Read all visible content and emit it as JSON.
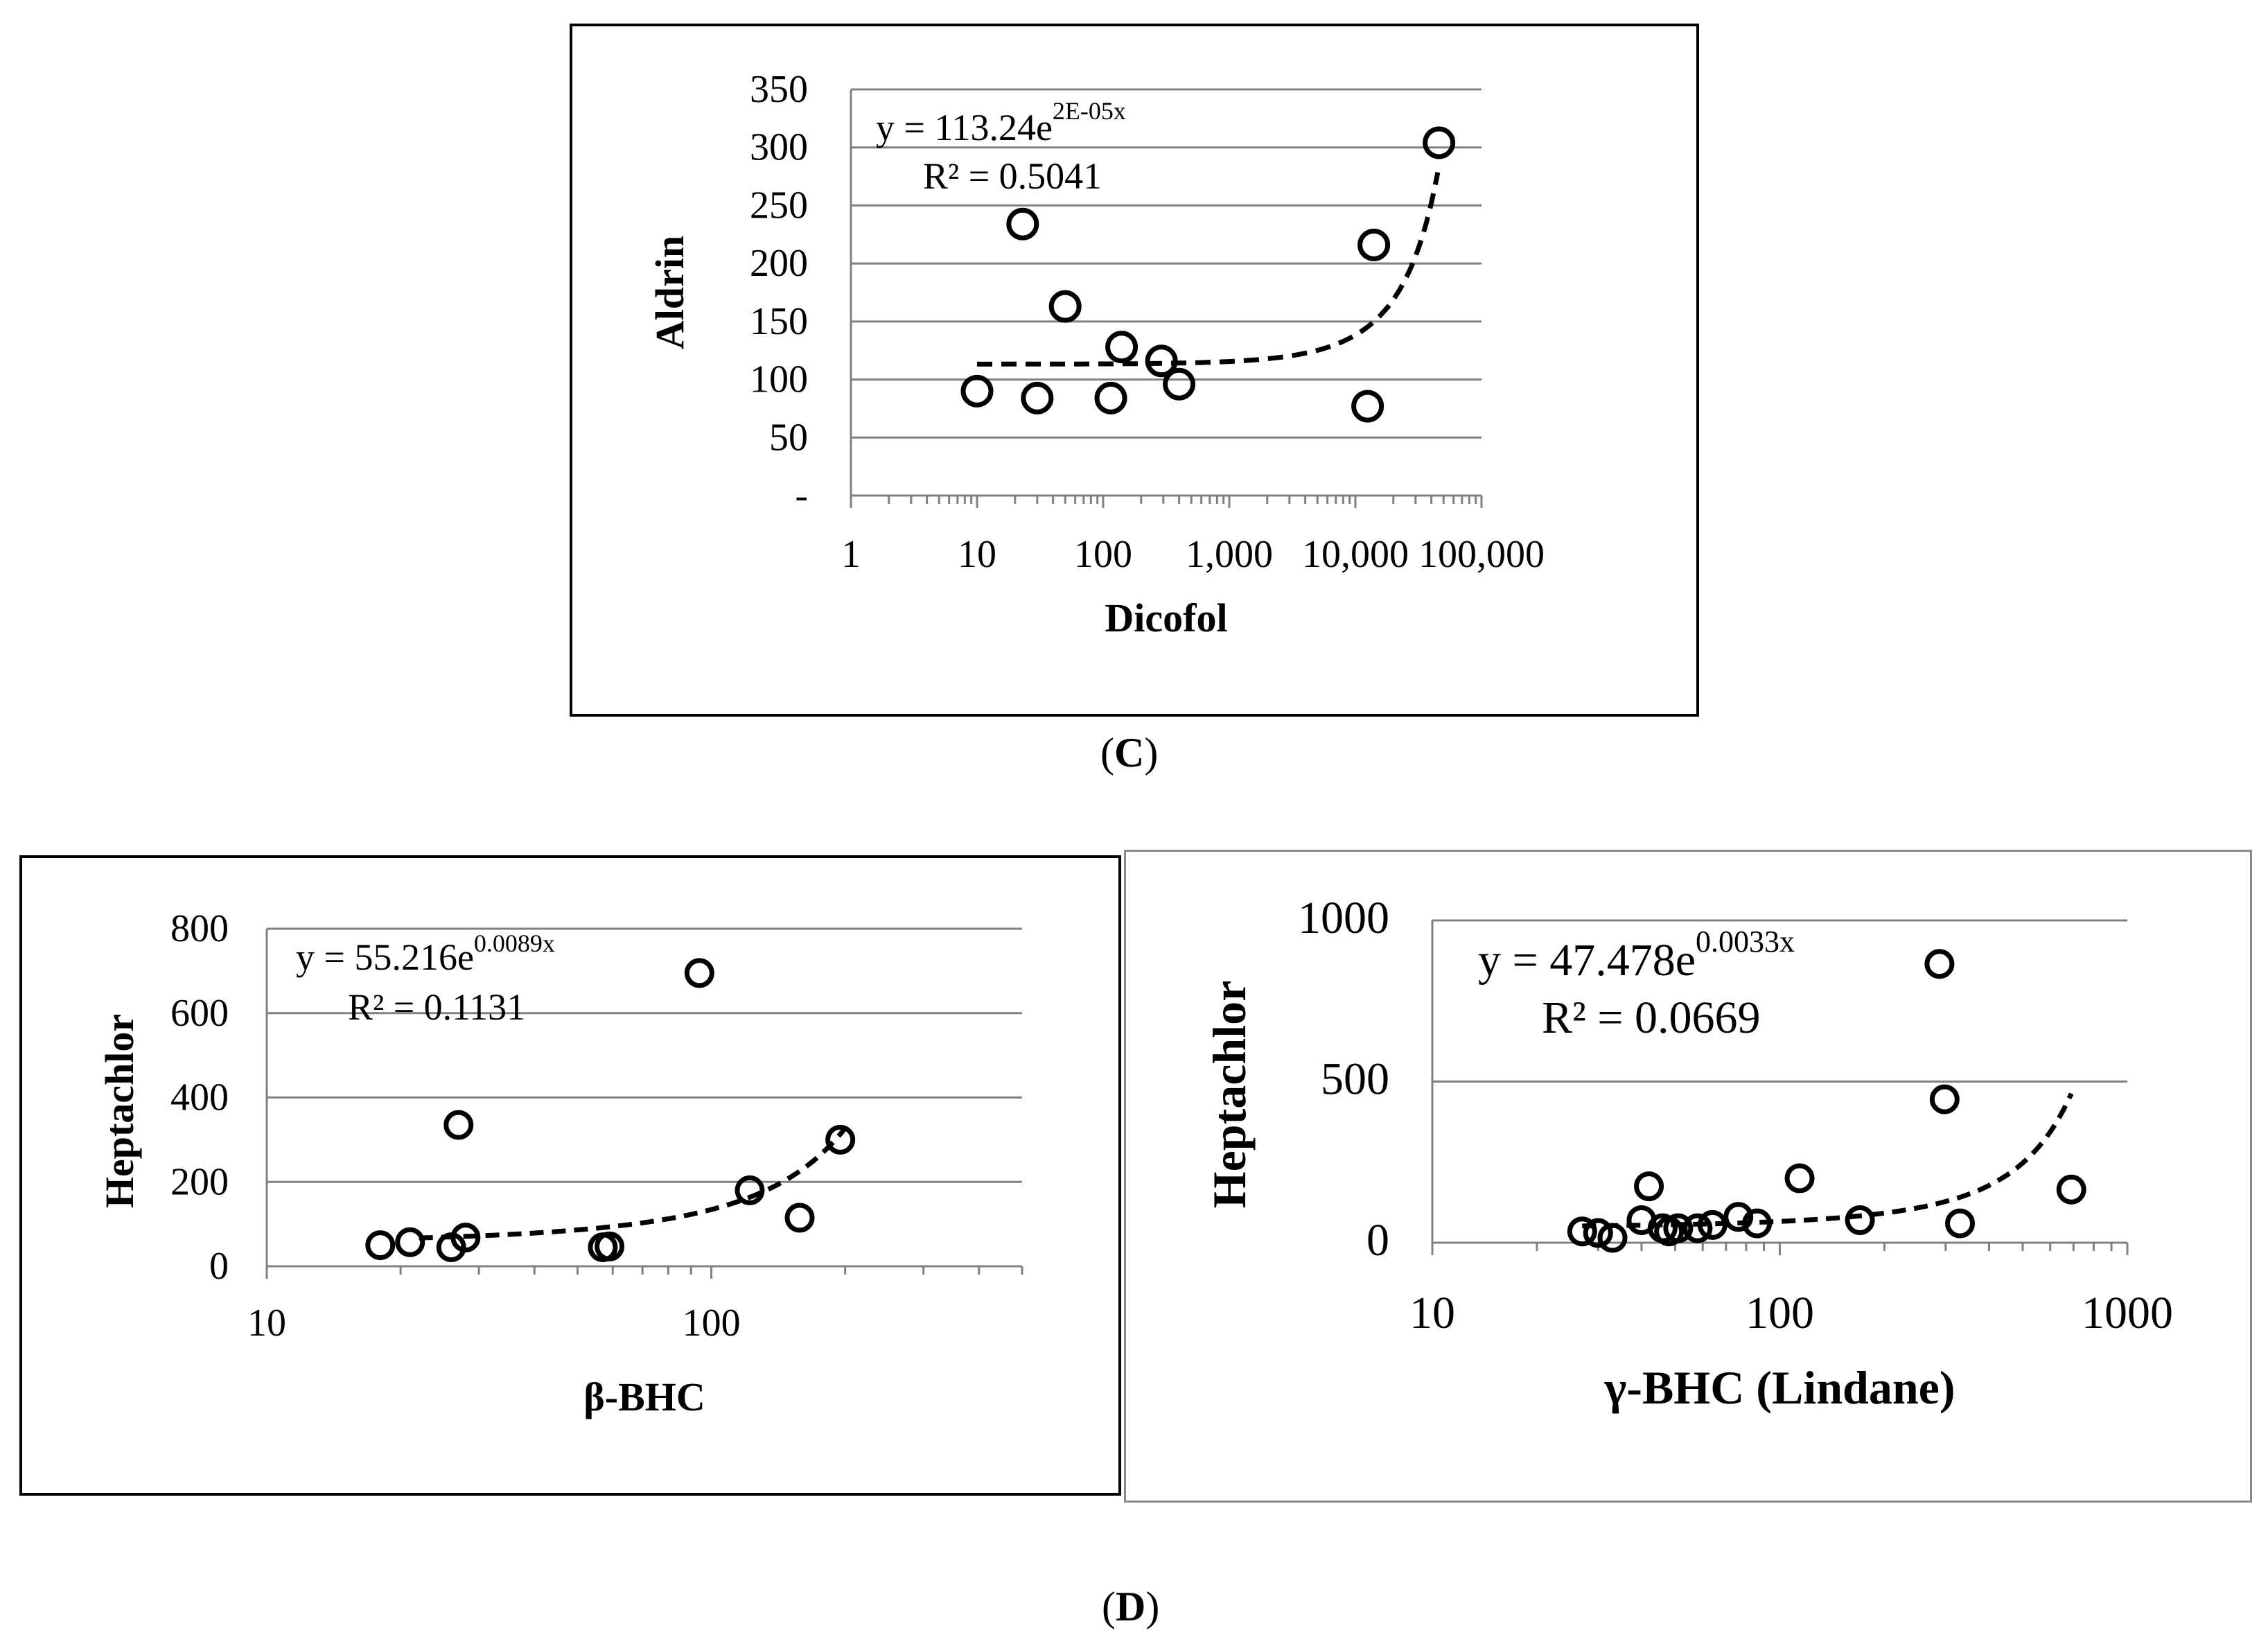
{
  "figure": {
    "caption_c_label": "C",
    "caption_d_label": "D",
    "caption_open": "(",
    "caption_close": ")"
  },
  "colors": {
    "axis": "#808080",
    "grid": "#808080",
    "marker": "#000000",
    "trend": "#000000"
  },
  "chart_data": [
    {
      "id": "C",
      "type": "scatter",
      "xscale": "log",
      "xlabel": "Dicofol",
      "ylabel": "Aldrin",
      "xlim": [
        1,
        100000
      ],
      "ylim": [
        0,
        350
      ],
      "yticks": [
        0,
        50,
        100,
        150,
        200,
        250,
        300,
        350
      ],
      "ytick_labels": [
        "-",
        "50",
        "100",
        "150",
        "200",
        "250",
        "300",
        "350"
      ],
      "xticks": [
        1,
        10,
        100,
        1000,
        10000,
        100000
      ],
      "xtick_labels": [
        "1",
        "10",
        "100",
        "1,000",
        "10,000",
        "100,000"
      ],
      "grid": true,
      "trendline": {
        "type": "exponential",
        "a": 113.24,
        "b": 2e-05,
        "x_from": 10,
        "x_to": 45000
      },
      "equation_main": "y = 113.24e",
      "equation_exp": "2E-05x",
      "r2": "R² = 0.5041",
      "points": [
        {
          "x": 10,
          "y": 90
        },
        {
          "x": 23,
          "y": 234
        },
        {
          "x": 30,
          "y": 84
        },
        {
          "x": 50,
          "y": 163
        },
        {
          "x": 115,
          "y": 84
        },
        {
          "x": 140,
          "y": 128
        },
        {
          "x": 290,
          "y": 116
        },
        {
          "x": 400,
          "y": 96
        },
        {
          "x": 12500,
          "y": 77
        },
        {
          "x": 14000,
          "y": 216
        },
        {
          "x": 46000,
          "y": 304
        }
      ]
    },
    {
      "id": "D1",
      "type": "scatter",
      "xscale": "log",
      "xlabel": "β-BHC",
      "ylabel": "Heptachlor",
      "xlim": [
        10,
        500
      ],
      "ylim": [
        0,
        800
      ],
      "yticks": [
        0,
        200,
        400,
        600,
        800
      ],
      "ytick_labels": [
        "0",
        "200",
        "400",
        "600",
        "800"
      ],
      "xticks": [
        10,
        100
      ],
      "xtick_labels": [
        "10",
        "100"
      ],
      "grid": true,
      "trendline": {
        "type": "exponential",
        "a": 55.216,
        "b": 0.0089,
        "x_from": 22,
        "x_to": 200
      },
      "equation_main": "y = 55.216e",
      "equation_exp": "0.0089x",
      "r2": "R² = 0.1131",
      "points": [
        {
          "x": 18,
          "y": 50
        },
        {
          "x": 21,
          "y": 57
        },
        {
          "x": 26,
          "y": 45
        },
        {
          "x": 27,
          "y": 335
        },
        {
          "x": 28,
          "y": 68
        },
        {
          "x": 57,
          "y": 45
        },
        {
          "x": 59,
          "y": 47
        },
        {
          "x": 94,
          "y": 695
        },
        {
          "x": 122,
          "y": 180
        },
        {
          "x": 158,
          "y": 115
        },
        {
          "x": 195,
          "y": 300
        }
      ]
    },
    {
      "id": "D2",
      "type": "scatter",
      "xscale": "log",
      "xlabel": "γ-BHC (Lindane)",
      "ylabel": "Heptachlor",
      "xlim": [
        10,
        1000
      ],
      "ylim": [
        0,
        1000
      ],
      "yticks": [
        0,
        500,
        1000
      ],
      "ytick_labels": [
        "0",
        "500",
        "1000"
      ],
      "xticks": [
        10,
        100,
        1000
      ],
      "xtick_labels": [
        "10",
        "100",
        "1000"
      ],
      "grid": true,
      "trendline": {
        "type": "exponential",
        "a": 47.478,
        "b": 0.0033,
        "x_from": 27,
        "x_to": 690
      },
      "equation_main": "y = 47.478e",
      "equation_exp": "0.0033x",
      "r2": "R² = 0.0669",
      "points": [
        {
          "x": 27,
          "y": 35
        },
        {
          "x": 30,
          "y": 30
        },
        {
          "x": 33,
          "y": 15
        },
        {
          "x": 40,
          "y": 70
        },
        {
          "x": 42,
          "y": 175
        },
        {
          "x": 46,
          "y": 45
        },
        {
          "x": 48,
          "y": 35
        },
        {
          "x": 51,
          "y": 45
        },
        {
          "x": 58,
          "y": 45
        },
        {
          "x": 64,
          "y": 55
        },
        {
          "x": 76,
          "y": 80
        },
        {
          "x": 86,
          "y": 60
        },
        {
          "x": 114,
          "y": 200
        },
        {
          "x": 170,
          "y": 70
        },
        {
          "x": 288,
          "y": 865
        },
        {
          "x": 298,
          "y": 445
        },
        {
          "x": 330,
          "y": 60
        },
        {
          "x": 690,
          "y": 165
        }
      ]
    }
  ]
}
